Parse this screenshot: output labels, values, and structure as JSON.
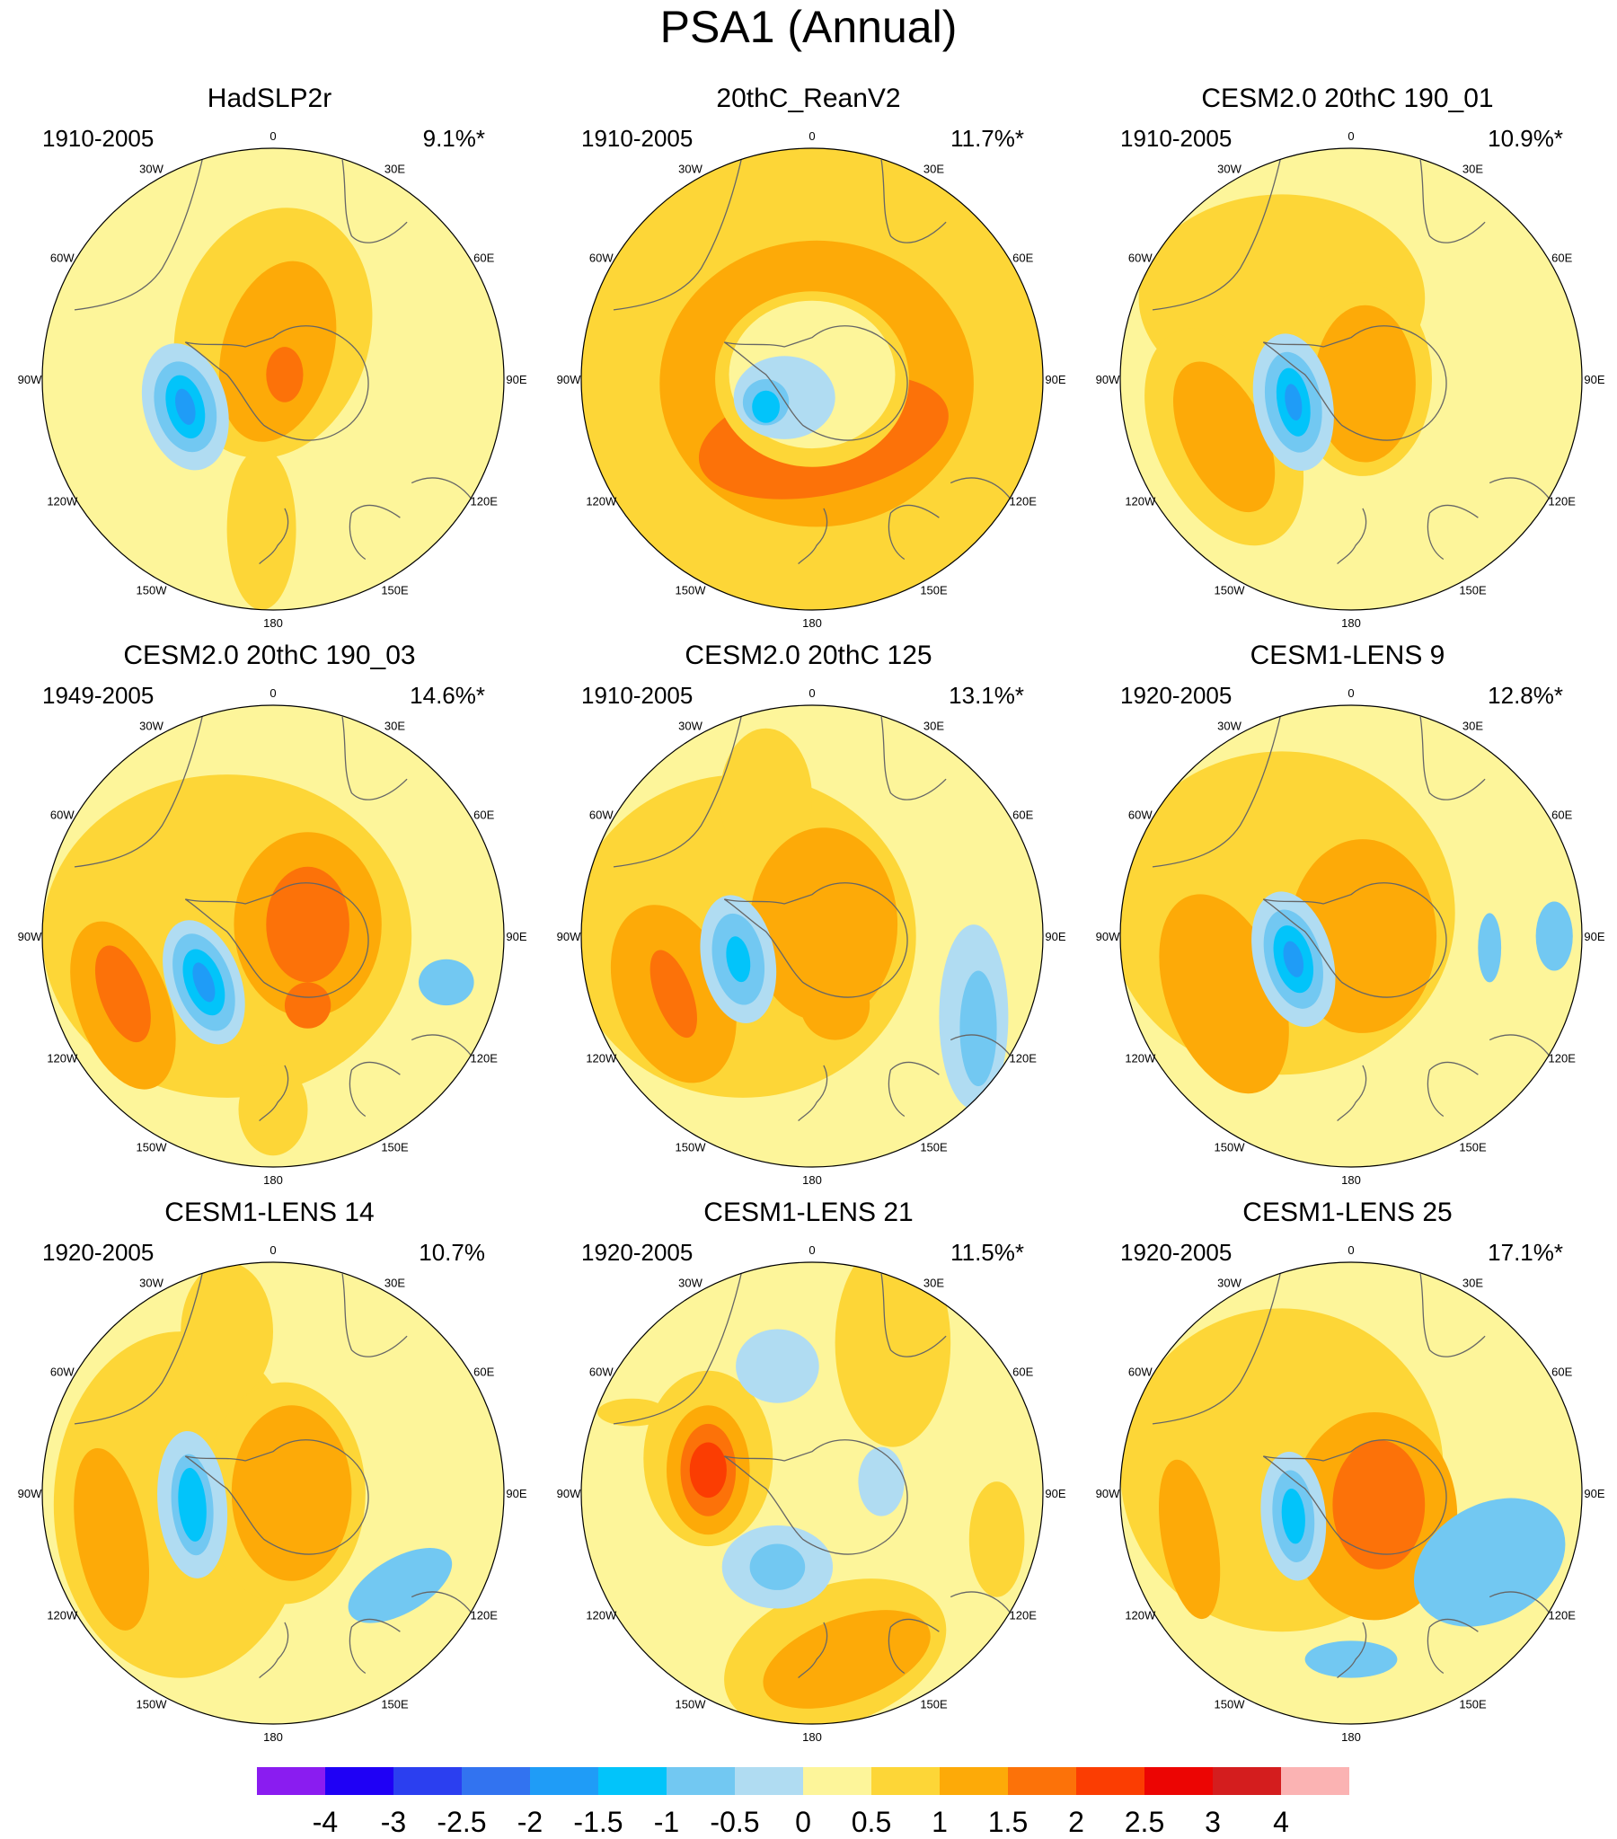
{
  "figure": {
    "title": "PSA1 (Annual)"
  },
  "longitude_labels": [
    "0",
    "30E",
    "60E",
    "90E",
    "120E",
    "150E",
    "180",
    "150W",
    "120W",
    "90W",
    "60W",
    "30W"
  ],
  "panels": [
    {
      "title": "HadSLP2r",
      "period": "1910-2005",
      "pct": "9.1%*",
      "blobs": [
        {
          "dx": 0.0,
          "dy": -0.2,
          "rx": 0.42,
          "ry": 0.55,
          "rot": 15,
          "level": 0.5
        },
        {
          "dx": -0.05,
          "dy": 0.65,
          "rx": 0.15,
          "ry": 0.35,
          "rot": 0,
          "level": 0.5
        },
        {
          "dx": 0.02,
          "dy": -0.12,
          "rx": 0.24,
          "ry": 0.4,
          "rot": 15,
          "level": 1.0
        },
        {
          "dx": 0.05,
          "dy": -0.02,
          "rx": 0.08,
          "ry": 0.12,
          "rot": 0,
          "level": 1.5
        },
        {
          "dx": -0.38,
          "dy": 0.12,
          "rx": 0.18,
          "ry": 0.28,
          "rot": -15,
          "level": -0.5
        },
        {
          "dx": -0.38,
          "dy": 0.12,
          "rx": 0.13,
          "ry": 0.2,
          "rot": -15,
          "level": -1.0
        },
        {
          "dx": -0.38,
          "dy": 0.12,
          "rx": 0.08,
          "ry": 0.14,
          "rot": -15,
          "level": -1.5
        },
        {
          "dx": -0.38,
          "dy": 0.12,
          "rx": 0.04,
          "ry": 0.08,
          "rot": -15,
          "level": -2.0
        }
      ]
    },
    {
      "title": "20thC_ReanV2",
      "period": "1910-2005",
      "pct": "11.7%*",
      "blobs": [
        {
          "dx": 0.0,
          "dy": 0.0,
          "rx": 1.0,
          "ry": 1.0,
          "rot": 0,
          "level": 0.5
        },
        {
          "dx": 0.02,
          "dy": 0.02,
          "rx": 0.68,
          "ry": 0.62,
          "rot": 0,
          "level": 1.0
        },
        {
          "dx": 0.05,
          "dy": 0.25,
          "rx": 0.55,
          "ry": 0.25,
          "rot": -12,
          "level": 1.5
        },
        {
          "dx": 0.0,
          "dy": 0.0,
          "rx": 0.42,
          "ry": 0.38,
          "rot": 0,
          "level": 0.5
        },
        {
          "dx": 0.0,
          "dy": -0.02,
          "rx": 0.36,
          "ry": 0.32,
          "rot": 0,
          "level": 0.0
        },
        {
          "dx": -0.12,
          "dy": 0.08,
          "rx": 0.22,
          "ry": 0.18,
          "rot": 0,
          "level": -0.5
        },
        {
          "dx": -0.2,
          "dy": 0.1,
          "rx": 0.1,
          "ry": 0.1,
          "rot": 0,
          "level": -1.0
        },
        {
          "dx": -0.2,
          "dy": 0.12,
          "rx": 0.06,
          "ry": 0.07,
          "rot": 0,
          "level": -1.5
        }
      ]
    },
    {
      "title": "CESM2.0 20thC 190_01",
      "period": "1910-2005",
      "pct": "10.9%*",
      "blobs": [
        {
          "dx": -0.3,
          "dy": -0.35,
          "rx": 0.62,
          "ry": 0.45,
          "rot": 0,
          "level": 0.5
        },
        {
          "dx": -0.55,
          "dy": 0.25,
          "rx": 0.3,
          "ry": 0.5,
          "rot": -25,
          "level": 0.5
        },
        {
          "dx": 0.05,
          "dy": 0.0,
          "rx": 0.3,
          "ry": 0.42,
          "rot": 0,
          "level": 0.5
        },
        {
          "dx": 0.06,
          "dy": 0.02,
          "rx": 0.22,
          "ry": 0.34,
          "rot": 0,
          "level": 1.0
        },
        {
          "dx": -0.55,
          "dy": 0.25,
          "rx": 0.18,
          "ry": 0.35,
          "rot": -25,
          "level": 1.0
        },
        {
          "dx": -0.25,
          "dy": 0.1,
          "rx": 0.17,
          "ry": 0.3,
          "rot": -10,
          "level": -0.5
        },
        {
          "dx": -0.25,
          "dy": 0.1,
          "rx": 0.12,
          "ry": 0.22,
          "rot": -10,
          "level": -1.0
        },
        {
          "dx": -0.25,
          "dy": 0.1,
          "rx": 0.07,
          "ry": 0.15,
          "rot": -10,
          "level": -1.5
        },
        {
          "dx": -0.25,
          "dy": 0.1,
          "rx": 0.035,
          "ry": 0.08,
          "rot": -10,
          "level": -2.0
        }
      ]
    },
    {
      "title": "CESM2.0 20thC 190_03",
      "period": "1949-2005",
      "pct": "14.6%*",
      "blobs": [
        {
          "dx": -0.2,
          "dy": 0.0,
          "rx": 0.8,
          "ry": 0.7,
          "rot": 0,
          "level": 0.5
        },
        {
          "dx": 0.0,
          "dy": 0.75,
          "rx": 0.15,
          "ry": 0.2,
          "rot": 0,
          "level": 0.5
        },
        {
          "dx": 0.15,
          "dy": -0.05,
          "rx": 0.32,
          "ry": 0.4,
          "rot": 0,
          "level": 1.0
        },
        {
          "dx": 0.15,
          "dy": -0.05,
          "rx": 0.18,
          "ry": 0.25,
          "rot": 0,
          "level": 1.5
        },
        {
          "dx": 0.15,
          "dy": 0.3,
          "rx": 0.1,
          "ry": 0.1,
          "rot": 0,
          "level": 1.5
        },
        {
          "dx": -0.65,
          "dy": 0.3,
          "rx": 0.2,
          "ry": 0.38,
          "rot": -20,
          "level": 1.0
        },
        {
          "dx": -0.65,
          "dy": 0.25,
          "rx": 0.1,
          "ry": 0.22,
          "rot": -20,
          "level": 1.5
        },
        {
          "dx": -0.3,
          "dy": 0.2,
          "rx": 0.16,
          "ry": 0.28,
          "rot": -20,
          "level": -0.5
        },
        {
          "dx": -0.3,
          "dy": 0.2,
          "rx": 0.12,
          "ry": 0.22,
          "rot": -20,
          "level": -1.0
        },
        {
          "dx": -0.3,
          "dy": 0.2,
          "rx": 0.08,
          "ry": 0.15,
          "rot": -20,
          "level": -1.5
        },
        {
          "dx": -0.3,
          "dy": 0.2,
          "rx": 0.04,
          "ry": 0.09,
          "rot": -20,
          "level": -2.0
        },
        {
          "dx": 0.75,
          "dy": 0.2,
          "rx": 0.12,
          "ry": 0.1,
          "rot": 0,
          "level": -1.0
        }
      ]
    },
    {
      "title": "CESM2.0 20thC 125",
      "period": "1910-2005",
      "pct": "13.1%*",
      "blobs": [
        {
          "dx": -0.3,
          "dy": 0.0,
          "rx": 0.75,
          "ry": 0.7,
          "rot": 0,
          "level": 0.5
        },
        {
          "dx": -0.2,
          "dy": -0.6,
          "rx": 0.2,
          "ry": 0.3,
          "rot": 0,
          "level": 0.5
        },
        {
          "dx": 0.05,
          "dy": -0.05,
          "rx": 0.32,
          "ry": 0.42,
          "rot": 0,
          "level": 1.0
        },
        {
          "dx": 0.1,
          "dy": 0.3,
          "rx": 0.15,
          "ry": 0.15,
          "rot": 0,
          "level": 1.0
        },
        {
          "dx": -0.6,
          "dy": 0.25,
          "rx": 0.25,
          "ry": 0.4,
          "rot": -20,
          "level": 1.0
        },
        {
          "dx": -0.6,
          "dy": 0.25,
          "rx": 0.08,
          "ry": 0.2,
          "rot": -20,
          "level": 1.5
        },
        {
          "dx": -0.32,
          "dy": 0.1,
          "rx": 0.16,
          "ry": 0.28,
          "rot": -10,
          "level": -0.5
        },
        {
          "dx": -0.32,
          "dy": 0.1,
          "rx": 0.11,
          "ry": 0.2,
          "rot": -10,
          "level": -1.0
        },
        {
          "dx": -0.32,
          "dy": 0.1,
          "rx": 0.05,
          "ry": 0.1,
          "rot": -10,
          "level": -1.5
        },
        {
          "dx": 0.7,
          "dy": 0.35,
          "rx": 0.15,
          "ry": 0.4,
          "rot": 0,
          "level": -0.5
        },
        {
          "dx": 0.72,
          "dy": 0.4,
          "rx": 0.08,
          "ry": 0.25,
          "rot": 0,
          "level": -1.0
        }
      ]
    },
    {
      "title": "CESM1-LENS 9",
      "period": "1920-2005",
      "pct": "12.8%*",
      "blobs": [
        {
          "dx": -0.3,
          "dy": -0.1,
          "rx": 0.75,
          "ry": 0.7,
          "rot": 0,
          "level": 0.5
        },
        {
          "dx": 0.05,
          "dy": 0.0,
          "rx": 0.32,
          "ry": 0.42,
          "rot": 0,
          "level": 1.0
        },
        {
          "dx": -0.55,
          "dy": 0.25,
          "rx": 0.25,
          "ry": 0.45,
          "rot": -20,
          "level": 1.0
        },
        {
          "dx": -0.25,
          "dy": 0.1,
          "rx": 0.17,
          "ry": 0.3,
          "rot": -15,
          "level": -0.5
        },
        {
          "dx": -0.25,
          "dy": 0.1,
          "rx": 0.12,
          "ry": 0.22,
          "rot": -15,
          "level": -1.0
        },
        {
          "dx": -0.25,
          "dy": 0.1,
          "rx": 0.08,
          "ry": 0.15,
          "rot": -15,
          "level": -1.5
        },
        {
          "dx": -0.25,
          "dy": 0.1,
          "rx": 0.04,
          "ry": 0.08,
          "rot": -15,
          "level": -2.0
        },
        {
          "dx": 0.6,
          "dy": 0.05,
          "rx": 0.05,
          "ry": 0.15,
          "rot": 0,
          "level": -1.0
        },
        {
          "dx": 0.88,
          "dy": 0.0,
          "rx": 0.08,
          "ry": 0.15,
          "rot": 0,
          "level": -1.0
        }
      ]
    },
    {
      "title": "CESM1-LENS 14",
      "period": "1920-2005",
      "pct": "10.7%",
      "blobs": [
        {
          "dx": -0.4,
          "dy": 0.05,
          "rx": 0.55,
          "ry": 0.75,
          "rot": 0,
          "level": 0.5
        },
        {
          "dx": -0.2,
          "dy": -0.7,
          "rx": 0.2,
          "ry": 0.3,
          "rot": 0,
          "level": 0.5
        },
        {
          "dx": 0.05,
          "dy": 0.0,
          "rx": 0.35,
          "ry": 0.48,
          "rot": 0,
          "level": 0.5
        },
        {
          "dx": 0.08,
          "dy": 0.0,
          "rx": 0.26,
          "ry": 0.38,
          "rot": 0,
          "level": 1.0
        },
        {
          "dx": -0.7,
          "dy": 0.2,
          "rx": 0.15,
          "ry": 0.4,
          "rot": -10,
          "level": 1.0
        },
        {
          "dx": -0.35,
          "dy": 0.05,
          "rx": 0.15,
          "ry": 0.32,
          "rot": -5,
          "level": -0.5
        },
        {
          "dx": -0.35,
          "dy": 0.05,
          "rx": 0.09,
          "ry": 0.22,
          "rot": -5,
          "level": -1.0
        },
        {
          "dx": -0.35,
          "dy": 0.05,
          "rx": 0.06,
          "ry": 0.16,
          "rot": -5,
          "level": -1.5
        },
        {
          "dx": 0.55,
          "dy": 0.4,
          "rx": 0.25,
          "ry": 0.12,
          "rot": -30,
          "level": -1.0
        }
      ]
    },
    {
      "title": "CESM1-LENS 21",
      "period": "1920-2005",
      "pct": "11.5%*",
      "blobs": [
        {
          "dx": 0.35,
          "dy": -0.65,
          "rx": 0.25,
          "ry": 0.45,
          "rot": 0,
          "level": 0.5
        },
        {
          "dx": 0.1,
          "dy": 0.7,
          "rx": 0.5,
          "ry": 0.3,
          "rot": -20,
          "level": 0.5
        },
        {
          "dx": 0.8,
          "dy": 0.2,
          "rx": 0.12,
          "ry": 0.25,
          "rot": 0,
          "level": 0.5
        },
        {
          "dx": 0.15,
          "dy": 0.72,
          "rx": 0.38,
          "ry": 0.18,
          "rot": -20,
          "level": 1.0
        },
        {
          "dx": -0.45,
          "dy": -0.15,
          "rx": 0.28,
          "ry": 0.38,
          "rot": 0,
          "level": 0.5
        },
        {
          "dx": -0.78,
          "dy": -0.35,
          "rx": 0.15,
          "ry": 0.06,
          "rot": 0,
          "level": 0.5
        },
        {
          "dx": -0.45,
          "dy": -0.1,
          "rx": 0.18,
          "ry": 0.28,
          "rot": 0,
          "level": 1.0
        },
        {
          "dx": -0.45,
          "dy": -0.1,
          "rx": 0.12,
          "ry": 0.2,
          "rot": 0,
          "level": 1.5
        },
        {
          "dx": -0.45,
          "dy": -0.1,
          "rx": 0.08,
          "ry": 0.12,
          "rot": 0,
          "level": 2.0
        },
        {
          "dx": -0.15,
          "dy": -0.55,
          "rx": 0.18,
          "ry": 0.16,
          "rot": 0,
          "level": -0.5
        },
        {
          "dx": 0.3,
          "dy": -0.05,
          "rx": 0.1,
          "ry": 0.15,
          "rot": 0,
          "level": -0.5
        },
        {
          "dx": -0.15,
          "dy": 0.32,
          "rx": 0.24,
          "ry": 0.18,
          "rot": 0,
          "level": -0.5
        },
        {
          "dx": -0.15,
          "dy": 0.32,
          "rx": 0.12,
          "ry": 0.1,
          "rot": 0,
          "level": -1.0
        }
      ]
    },
    {
      "title": "CESM1-LENS 25",
      "period": "1920-2005",
      "pct": "17.1%*",
      "blobs": [
        {
          "dx": -0.3,
          "dy": -0.1,
          "rx": 0.7,
          "ry": 0.7,
          "rot": 0,
          "level": 0.5
        },
        {
          "dx": 0.1,
          "dy": 0.1,
          "rx": 0.36,
          "ry": 0.45,
          "rot": 0,
          "level": 1.0
        },
        {
          "dx": 0.12,
          "dy": 0.05,
          "rx": 0.2,
          "ry": 0.28,
          "rot": 0,
          "level": 1.5
        },
        {
          "dx": -0.7,
          "dy": 0.2,
          "rx": 0.12,
          "ry": 0.35,
          "rot": -10,
          "level": 1.0
        },
        {
          "dx": -0.25,
          "dy": 0.1,
          "rx": 0.14,
          "ry": 0.28,
          "rot": -5,
          "level": -0.5
        },
        {
          "dx": -0.25,
          "dy": 0.1,
          "rx": 0.09,
          "ry": 0.2,
          "rot": -5,
          "level": -1.0
        },
        {
          "dx": -0.25,
          "dy": 0.1,
          "rx": 0.05,
          "ry": 0.12,
          "rot": -5,
          "level": -1.5
        },
        {
          "dx": 0.6,
          "dy": 0.3,
          "rx": 0.35,
          "ry": 0.25,
          "rot": -30,
          "level": -1.0
        },
        {
          "dx": 0.0,
          "dy": 0.72,
          "rx": 0.2,
          "ry": 0.08,
          "rot": 0,
          "level": -1.0
        }
      ]
    }
  ],
  "colorbar": {
    "ticks": [
      "-4",
      "-3",
      "-2.5",
      "-2",
      "-1.5",
      "-1",
      "-0.5",
      "0",
      "0.5",
      "1",
      "1.5",
      "2",
      "2.5",
      "3",
      "4"
    ],
    "colors": [
      "#8a1cf0",
      "#1f00f5",
      "#2b3ff0",
      "#3273f0",
      "#1f9cf7",
      "#02c4fa",
      "#72c8f2",
      "#b0dcf2",
      "#fdf59a",
      "#fdd637",
      "#fdaa08",
      "#fc7209",
      "#fb3d02",
      "#ec0503",
      "#d41d1e",
      "#fbb3b3"
    ]
  }
}
